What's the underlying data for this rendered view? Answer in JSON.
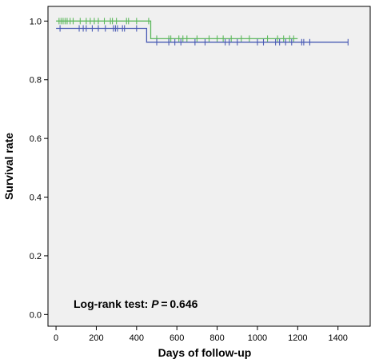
{
  "chart_data": {
    "type": "line",
    "title": "",
    "xlabel": "Days of follow-up",
    "ylabel": "Survival rate",
    "xlim": [
      -40,
      1560
    ],
    "ylim": [
      -0.04,
      1.05
    ],
    "x_ticks": [
      0,
      200,
      400,
      600,
      800,
      1000,
      1200,
      1400
    ],
    "y_ticks": [
      0.0,
      0.2,
      0.4,
      0.6,
      0.8,
      1.0
    ],
    "y_tick_labels": [
      "0.0",
      "0.2",
      "0.4",
      "0.6",
      "0.8",
      "1.0"
    ],
    "grid": false,
    "background": "#f0f0f0",
    "annotation": {
      "prefix": "Log-rank test: ",
      "p_symbol": "P",
      "equals": " = 0.646"
    },
    "series": [
      {
        "color": "#5cb85c",
        "steps": [
          [
            0,
            1.0
          ],
          [
            470,
            1.0
          ],
          [
            470,
            0.94
          ],
          [
            1200,
            0.94
          ]
        ],
        "censored": [
          15,
          25,
          35,
          45,
          55,
          70,
          85,
          120,
          150,
          170,
          190,
          210,
          240,
          270,
          280,
          300,
          350,
          360,
          400,
          460,
          500,
          560,
          570,
          610,
          630,
          650,
          700,
          760,
          800,
          830,
          870,
          920,
          960,
          1050,
          1100,
          1130,
          1160,
          1180
        ]
      },
      {
        "color": "#4a5bb5",
        "steps": [
          [
            0,
            0.975
          ],
          [
            450,
            0.975
          ],
          [
            450,
            0.928
          ],
          [
            1450,
            0.928
          ]
        ],
        "censored": [
          20,
          115,
          135,
          150,
          180,
          210,
          245,
          285,
          295,
          305,
          330,
          340,
          400,
          500,
          560,
          590,
          620,
          690,
          740,
          840,
          860,
          900,
          1000,
          1030,
          1090,
          1110,
          1140,
          1170,
          1220,
          1230,
          1260,
          1450
        ]
      }
    ]
  }
}
